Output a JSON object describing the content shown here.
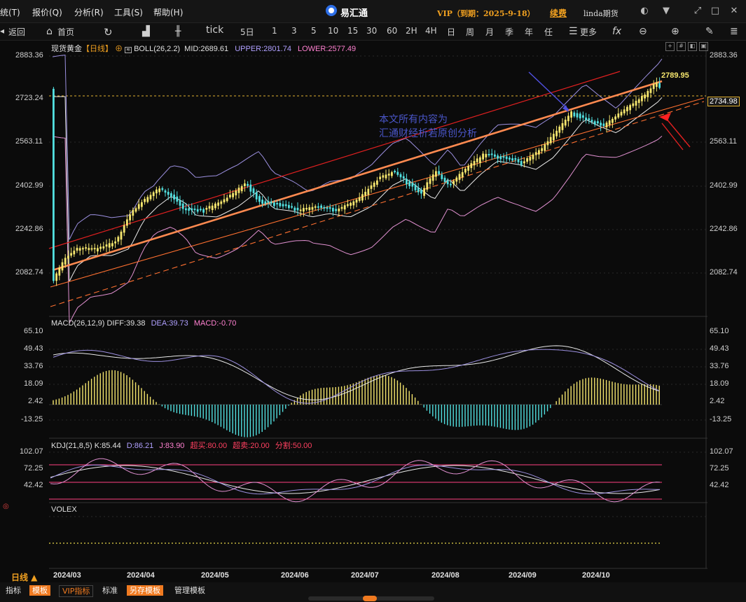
{
  "menu": [
    "统(T)",
    "报价(Q)",
    "分析(R)",
    "工具(S)",
    "帮助(H)"
  ],
  "app_title": "易汇通",
  "vip_text": "VIP（到期：2025-9-18）",
  "renew_label": "续费",
  "user_name": "linda期货",
  "toolbar": {
    "back_label": "返回",
    "home_label": "首页",
    "tick_label": "tick",
    "periods": [
      "5日",
      "1",
      "3",
      "5",
      "10",
      "15",
      "30",
      "60",
      "2H",
      "4H",
      "日",
      "周",
      "月",
      "季",
      "年",
      "任"
    ],
    "more_label": "更多"
  },
  "main_legend": {
    "name": "现货黄金",
    "period": "【日线】",
    "boll": "BOLL(26,2.2)",
    "mid": "MID:2689.61",
    "upper": "UPPER:2801.74",
    "lower": "LOWER:2577.49"
  },
  "price_axis": [
    "2883.36",
    "2723.24",
    "2563.11",
    "2402.99",
    "2242.86",
    "2082.74"
  ],
  "current_price": "2734.98",
  "high_marker": "2789.95",
  "watermark": [
    "本文所有内容为",
    "汇通财经析若原创分析"
  ],
  "macd_legend": {
    "name": "MACD(26,12,9)",
    "diff": "DIFF:39.38",
    "dea": "DEA:39.73",
    "macd": "MACD:-0.70"
  },
  "macd_axis": [
    "65.10",
    "49.43",
    "33.76",
    "18.09",
    "2.42",
    "-13.25"
  ],
  "kdj_legend": {
    "name": "KDJ(21,8,5)",
    "k": "K:85.44",
    "d": "D:86.21",
    "j": "J:83.90",
    "overbought": "超买:80.00",
    "oversold": "超卖:20.00",
    "split": "分割:50.00"
  },
  "kdj_axis": [
    "102.07",
    "72.25",
    "42.42"
  ],
  "volex_label": "VOLEX",
  "x_axis": [
    "2024/03",
    "2024/04",
    "2024/05",
    "2024/06",
    "2024/07",
    "2024/08",
    "2024/09",
    "2024/10"
  ],
  "period_indicator": "日线 ▲",
  "bottom_tabs": [
    "指标",
    "模板",
    "VIP指标",
    "标准",
    "另存模板",
    "管理模板"
  ],
  "colors": {
    "up": "#f5e66e",
    "down": "#52e0e0",
    "accent": "#f0a020",
    "trend": "#ff8040"
  }
}
